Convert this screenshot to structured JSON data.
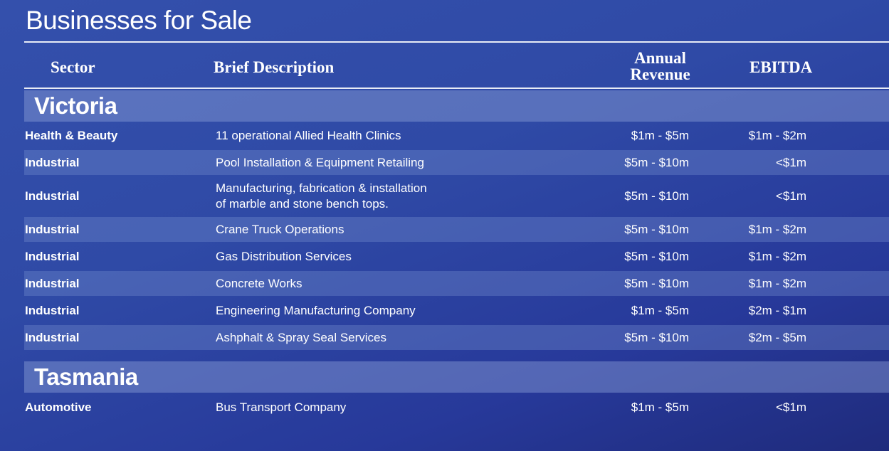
{
  "title": "Businesses for Sale",
  "columns": {
    "sector": "Sector",
    "description": "Brief Description",
    "revenue_line1": "Annual",
    "revenue_line2": "Revenue",
    "ebitda": "EBITDA"
  },
  "regions": [
    {
      "name": "Victoria",
      "rows": [
        {
          "sector": "Health & Beauty",
          "desc1": "11 operational Allied Health Clinics",
          "desc2": "",
          "revenue": "$1m - $5m",
          "ebitda": "$1m - $2m"
        },
        {
          "sector": "Industrial",
          "desc1": "Pool Installation & Equipment Retailing",
          "desc2": "",
          "revenue": "$5m - $10m",
          "ebitda": "<$1m"
        },
        {
          "sector": "Industrial",
          "desc1": "Manufacturing, fabrication & installation",
          "desc2": "of marble and stone bench tops.",
          "revenue": "$5m - $10m",
          "ebitda": "<$1m"
        },
        {
          "sector": "Industrial",
          "desc1": "Crane Truck Operations",
          "desc2": "",
          "revenue": "$5m - $10m",
          "ebitda": "$1m - $2m"
        },
        {
          "sector": "Industrial",
          "desc1": "Gas Distribution Services",
          "desc2": "",
          "revenue": "$5m - $10m",
          "ebitda": "$1m - $2m"
        },
        {
          "sector": "Industrial",
          "desc1": "Concrete Works",
          "desc2": "",
          "revenue": "$5m - $10m",
          "ebitda": "$1m - $2m"
        },
        {
          "sector": "Industrial",
          "desc1": "Engineering Manufacturing Company",
          "desc2": "",
          "revenue": "$1m - $5m",
          "ebitda": "$2m - $1m"
        },
        {
          "sector": "Industrial",
          "desc1": "Ashphalt & Spray Seal Services",
          "desc2": "",
          "revenue": "$5m - $10m",
          "ebitda": "$2m - $5m"
        }
      ]
    },
    {
      "name": "Tasmania",
      "rows": [
        {
          "sector": "Automotive",
          "desc1": "Bus Transport Company",
          "desc2": "",
          "revenue": "$1m - $5m",
          "ebitda": "<$1m"
        }
      ]
    }
  ]
}
